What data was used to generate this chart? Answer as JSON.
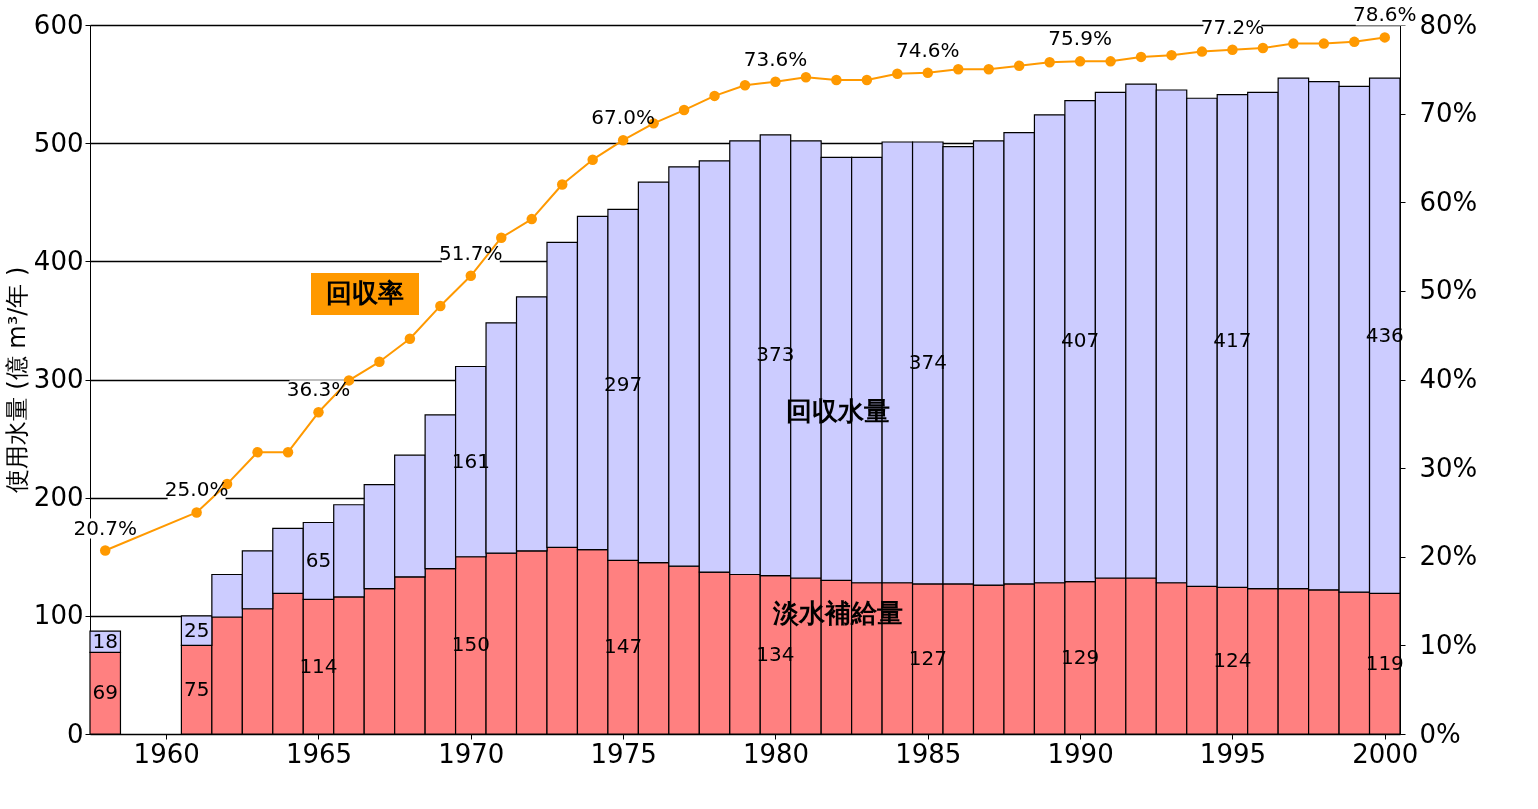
{
  "chart_data": {
    "type": "bar",
    "stacked": true,
    "ylabel": "使用水量 (億 m³/年 )",
    "legend": false,
    "grid": "y",
    "marker": "circle",
    "line_style": "solid",
    "x": [
      1958,
      1959,
      1960,
      1961,
      1962,
      1963,
      1964,
      1965,
      1966,
      1967,
      1968,
      1969,
      1970,
      1971,
      1972,
      1973,
      1974,
      1975,
      1976,
      1977,
      1978,
      1979,
      1980,
      1981,
      1982,
      1983,
      1984,
      1985,
      1986,
      1987,
      1988,
      1989,
      1990,
      1991,
      1992,
      1993,
      1994,
      1995,
      1996,
      1997,
      1998,
      1999,
      2000
    ],
    "xlim": [
      1957.5,
      2000.5
    ],
    "xticks": [
      1960,
      1965,
      1970,
      1975,
      1980,
      1985,
      1990,
      1995,
      2000
    ],
    "ylim": [
      0,
      600
    ],
    "yticks": [
      0,
      100,
      200,
      300,
      400,
      500,
      600
    ],
    "y2lim": [
      0,
      80
    ],
    "y2ticks": [
      {
        "value": 0,
        "label": "0%"
      },
      {
        "value": 10,
        "label": "10%"
      },
      {
        "value": 20,
        "label": "20%"
      },
      {
        "value": 30,
        "label": "30%"
      },
      {
        "value": 40,
        "label": "40%"
      },
      {
        "value": 50,
        "label": "50%"
      },
      {
        "value": 60,
        "label": "60%"
      },
      {
        "value": 70,
        "label": "70%"
      },
      {
        "value": 80,
        "label": "80%"
      }
    ],
    "series": [
      {
        "name": "淡水補給量",
        "type": "bar",
        "color": "#ff8080",
        "values": [
          69,
          null,
          null,
          75,
          99,
          106,
          119,
          114,
          116,
          123,
          133,
          140,
          150,
          153,
          155,
          158,
          156,
          147,
          145,
          142,
          137,
          135,
          134,
          132,
          130,
          128,
          128,
          127,
          127,
          126,
          127,
          128,
          129,
          132,
          132,
          128,
          125,
          124,
          123,
          123,
          122,
          120,
          119
        ],
        "value_labels": [
          "69",
          null,
          null,
          "75",
          null,
          null,
          null,
          "114",
          null,
          null,
          null,
          null,
          "150",
          null,
          null,
          null,
          null,
          "147",
          null,
          null,
          null,
          null,
          "134",
          null,
          null,
          null,
          null,
          "127",
          null,
          null,
          null,
          null,
          "129",
          null,
          null,
          null,
          null,
          "124",
          null,
          null,
          null,
          null,
          "119"
        ]
      },
      {
        "name": "回収水量",
        "type": "bar",
        "color": "#ccccff",
        "values": [
          18,
          null,
          null,
          25,
          36,
          49,
          55,
          65,
          78,
          88,
          103,
          130,
          161,
          195,
          215,
          258,
          282,
          297,
          322,
          338,
          348,
          367,
          373,
          370,
          358,
          360,
          373,
          374,
          370,
          376,
          382,
          396,
          407,
          411,
          418,
          417,
          413,
          417,
          420,
          432,
          430,
          428,
          436
        ],
        "value_labels": [
          "18",
          null,
          null,
          "25",
          null,
          null,
          null,
          "65",
          null,
          null,
          null,
          null,
          "161",
          null,
          null,
          null,
          null,
          "297",
          null,
          null,
          null,
          null,
          "373",
          null,
          null,
          null,
          null,
          "374",
          null,
          null,
          null,
          null,
          "407",
          null,
          null,
          null,
          null,
          "417",
          null,
          null,
          null,
          null,
          "436"
        ]
      },
      {
        "name": "回収率",
        "type": "line",
        "axis": "y2",
        "color": "#ff9900",
        "x": [
          1958,
          1961,
          1962,
          1963,
          1964,
          1965,
          1966,
          1967,
          1968,
          1969,
          1970,
          1971,
          1972,
          1973,
          1974,
          1975,
          1976,
          1977,
          1978,
          1979,
          1980,
          1981,
          1982,
          1983,
          1984,
          1985,
          1986,
          1987,
          1988,
          1989,
          1990,
          1991,
          1992,
          1993,
          1994,
          1995,
          1996,
          1997,
          1998,
          1999,
          2000
        ],
        "values": [
          20.7,
          25.0,
          28.2,
          31.8,
          31.8,
          36.3,
          39.9,
          42.0,
          44.6,
          48.3,
          51.7,
          56.0,
          58.1,
          62.0,
          64.8,
          67.0,
          68.9,
          70.4,
          72.0,
          73.2,
          73.6,
          74.1,
          73.8,
          73.8,
          74.5,
          74.6,
          75.0,
          75.0,
          75.4,
          75.8,
          75.9,
          75.9,
          76.4,
          76.6,
          77.0,
          77.2,
          77.4,
          77.9,
          77.9,
          78.1,
          78.6
        ],
        "value_labels": [
          "20.7%",
          "25.0%",
          null,
          null,
          null,
          "36.3%",
          null,
          null,
          null,
          null,
          "51.7%",
          null,
          null,
          null,
          null,
          "67.0%",
          null,
          null,
          null,
          null,
          "73.6%",
          null,
          null,
          null,
          null,
          "74.6%",
          null,
          null,
          null,
          null,
          "75.9%",
          null,
          null,
          null,
          null,
          "77.2%",
          null,
          null,
          null,
          null,
          "78.6%"
        ]
      }
    ]
  }
}
